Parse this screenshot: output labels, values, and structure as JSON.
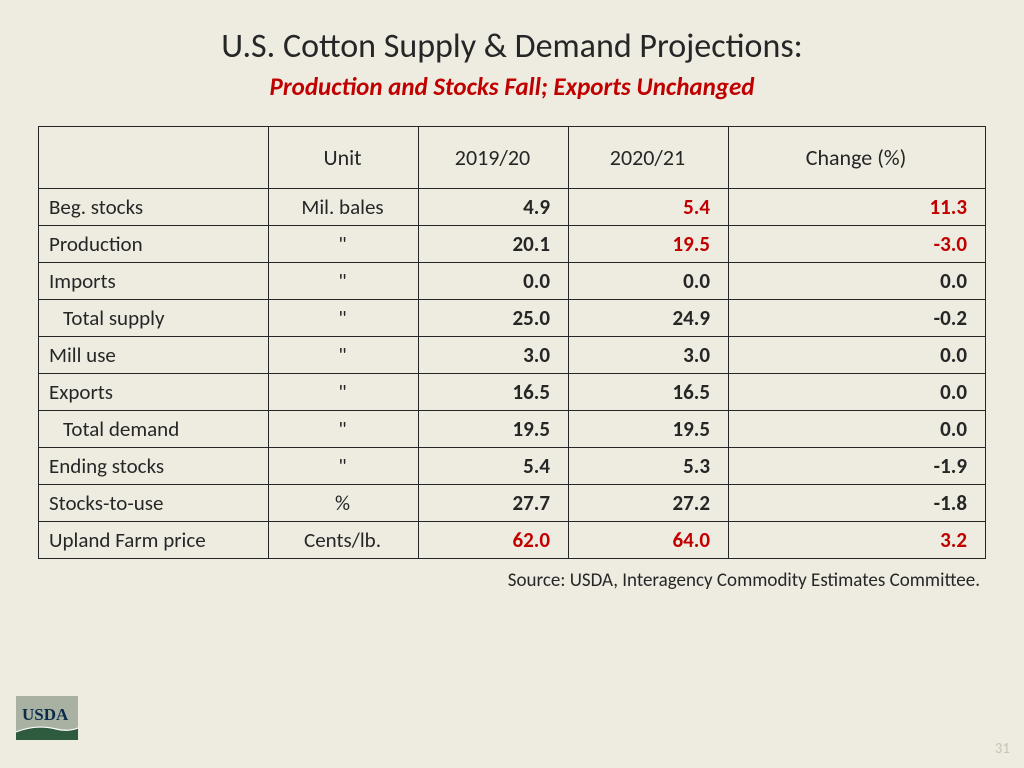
{
  "title": "U.S. Cotton Supply & Demand Projections:",
  "subtitle": "Production and Stocks Fall; Exports Unchanged",
  "columns": [
    "",
    "Unit",
    "2019/20",
    "2020/21",
    "Change (%)"
  ],
  "rows": [
    {
      "label": "Beg. stocks",
      "indent": false,
      "unit": "Mil. bales",
      "y1": "4.9",
      "y1_red": false,
      "y2": "5.4",
      "y2_red": true,
      "chg": "11.3",
      "chg_red": true
    },
    {
      "label": "Production",
      "indent": false,
      "unit": "\"",
      "y1": "20.1",
      "y1_red": false,
      "y2": "19.5",
      "y2_red": true,
      "chg": "-3.0",
      "chg_red": true
    },
    {
      "label": "Imports",
      "indent": false,
      "unit": "\"",
      "y1": "0.0",
      "y1_red": false,
      "y2": "0.0",
      "y2_red": false,
      "chg": "0.0",
      "chg_red": false
    },
    {
      "label": "Total supply",
      "indent": true,
      "unit": "\"",
      "y1": "25.0",
      "y1_red": false,
      "y2": "24.9",
      "y2_red": false,
      "chg": "-0.2",
      "chg_red": false
    },
    {
      "label": "Mill use",
      "indent": false,
      "unit": "\"",
      "y1": "3.0",
      "y1_red": false,
      "y2": "3.0",
      "y2_red": false,
      "chg": "0.0",
      "chg_red": false
    },
    {
      "label": "Exports",
      "indent": false,
      "unit": "\"",
      "y1": "16.5",
      "y1_red": false,
      "y2": "16.5",
      "y2_red": false,
      "chg": "0.0",
      "chg_red": false
    },
    {
      "label": "Total demand",
      "indent": true,
      "unit": "\"",
      "y1": "19.5",
      "y1_red": false,
      "y2": "19.5",
      "y2_red": false,
      "chg": "0.0",
      "chg_red": false
    },
    {
      "label": "Ending stocks",
      "indent": false,
      "unit": "\"",
      "y1": "5.4",
      "y1_red": false,
      "y2": "5.3",
      "y2_red": false,
      "chg": "-1.9",
      "chg_red": false
    },
    {
      "label": "Stocks-to-use",
      "indent": false,
      "unit": "%",
      "y1": "27.7",
      "y1_red": false,
      "y2": "27.2",
      "y2_red": false,
      "chg": "-1.8",
      "chg_red": false
    },
    {
      "label": "Upland Farm price",
      "indent": false,
      "unit": "Cents/lb.",
      "y1": "62.0",
      "y1_red": true,
      "y2": "64.0",
      "y2_red": true,
      "chg": "3.2",
      "chg_red": true
    }
  ],
  "source": "Source: USDA, Interagency Commodity Estimates Committee.",
  "page_number": "31",
  "logo": {
    "bg": "#a9b2a2",
    "text": "USDA",
    "text_color": "#0a2a4a",
    "swoosh": "#2e5a3e"
  },
  "colors": {
    "background": "#eeece1",
    "red": "#c00000",
    "border": "#262626"
  }
}
